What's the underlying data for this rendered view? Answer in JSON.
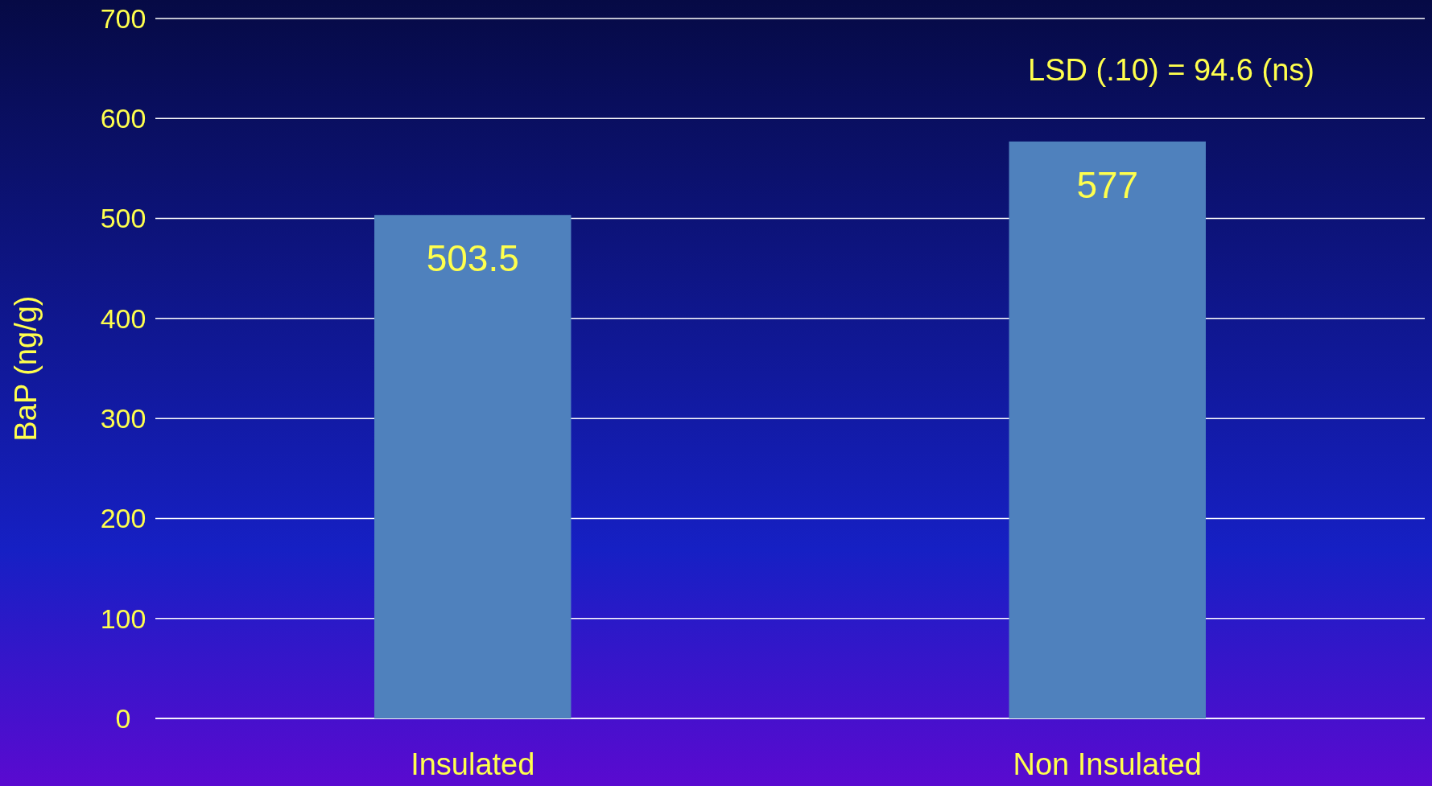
{
  "chart_data": {
    "type": "bar",
    "ylabel": "BaP (ng/g)",
    "categories": [
      "Insulated",
      "Non Insulated"
    ],
    "values": [
      503.5,
      577
    ],
    "color": "#4f81bd",
    "ylim": [
      0,
      700
    ],
    "yticks": [
      0,
      100,
      200,
      300,
      400,
      500,
      600,
      700
    ],
    "grid": "y",
    "data_labels": true,
    "annotations": [
      "LSD (.10) = 94.6 (ns)"
    ]
  }
}
